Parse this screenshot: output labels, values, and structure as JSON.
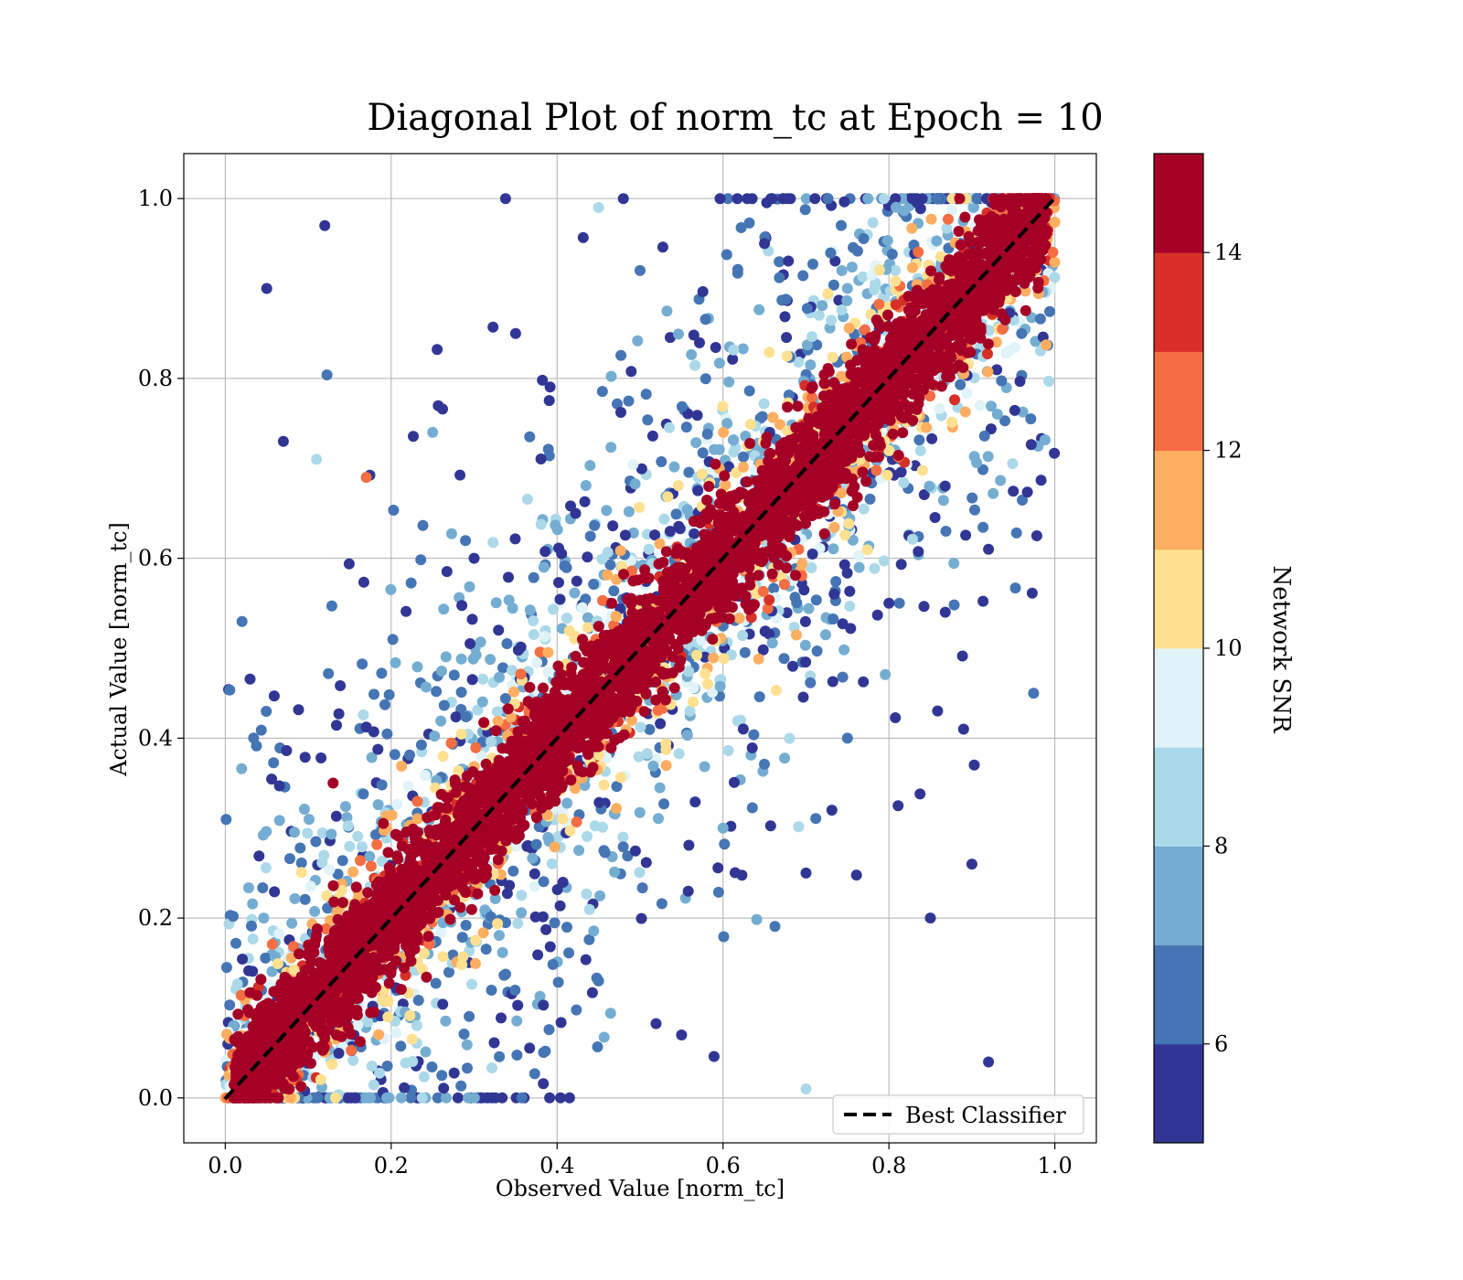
{
  "chart_data": {
    "type": "scatter",
    "title": "Diagonal Plot of norm_tc at Epoch = 10",
    "xlabel": "Observed Value [norm_tc]",
    "ylabel": "Actual Value [norm_tc]",
    "xlim": [
      -0.05,
      1.05
    ],
    "ylim": [
      -0.05,
      1.05
    ],
    "xticks": [
      "0.0",
      "0.2",
      "0.4",
      "0.6",
      "0.8",
      "1.0"
    ],
    "yticks": [
      "0.0",
      "0.2",
      "0.4",
      "0.6",
      "0.8",
      "1.0"
    ],
    "grid": true,
    "reference_line": {
      "label": "Best Classifier",
      "style": "dashed",
      "color": "#000000",
      "x": [
        0.0,
        1.0
      ],
      "y": [
        0.0,
        1.0
      ]
    },
    "legend": {
      "placement": "lower-right",
      "entries": [
        "Best Classifier"
      ]
    },
    "colorbar": {
      "label": "Network SNR",
      "range": [
        5,
        15
      ],
      "ticks": [
        "6",
        "8",
        "10",
        "12",
        "14"
      ],
      "tick_values": [
        6,
        8,
        10,
        12,
        14
      ],
      "colors": [
        "#313695",
        "#4575b4",
        "#74add1",
        "#abd9e9",
        "#e0f3f8",
        "#fee090",
        "#fdae61",
        "#f46d43",
        "#d73027",
        "#a50026"
      ]
    },
    "distribution_description": {
      "points_clipped_to": [
        0,
        1
      ],
      "high_snr_band_halfwidth": 0.05,
      "low_snr_spread": 0.6
    },
    "points": [
      {
        "x": 0.1,
        "y": 0.1,
        "snr": 15
      },
      {
        "x": 0.3,
        "y": 0.29,
        "snr": 15
      },
      {
        "x": 0.5,
        "y": 0.51,
        "snr": 15
      },
      {
        "x": 0.7,
        "y": 0.7,
        "snr": 15
      },
      {
        "x": 0.9,
        "y": 0.91,
        "snr": 15
      },
      {
        "x": 0.05,
        "y": 0.9,
        "snr": 5
      },
      {
        "x": 0.07,
        "y": 0.73,
        "snr": 5
      },
      {
        "x": 0.11,
        "y": 0.71,
        "snr": 8
      },
      {
        "x": 0.17,
        "y": 0.69,
        "snr": 12
      },
      {
        "x": 0.12,
        "y": 0.97,
        "snr": 5
      },
      {
        "x": 0.13,
        "y": 0.35,
        "snr": 14
      },
      {
        "x": 0.92,
        "y": 0.61,
        "snr": 5
      },
      {
        "x": 0.96,
        "y": 0.85,
        "snr": 6
      },
      {
        "x": 0.91,
        "y": 0.77,
        "snr": 9
      },
      {
        "x": 0.89,
        "y": 0.41,
        "snr": 5
      },
      {
        "x": 0.9,
        "y": 0.26,
        "snr": 5
      },
      {
        "x": 0.92,
        "y": 0.04,
        "snr": 5
      },
      {
        "x": 0.7,
        "y": 0.01,
        "snr": 8
      },
      {
        "x": 0.55,
        "y": 0.07,
        "snr": 5
      },
      {
        "x": 0.45,
        "y": 0.13,
        "snr": 6
      },
      {
        "x": 0.3,
        "y": 0.6,
        "snr": 5
      },
      {
        "x": 0.25,
        "y": 0.74,
        "snr": 7
      },
      {
        "x": 0.35,
        "y": 0.85,
        "snr": 5
      },
      {
        "x": 0.5,
        "y": 0.92,
        "snr": 6
      },
      {
        "x": 0.45,
        "y": 0.99,
        "snr": 8
      },
      {
        "x": 0.65,
        "y": 0.95,
        "snr": 5
      },
      {
        "x": 0.75,
        "y": 0.9,
        "snr": 7
      },
      {
        "x": 0.8,
        "y": 0.55,
        "snr": 5
      },
      {
        "x": 0.75,
        "y": 0.4,
        "snr": 6
      },
      {
        "x": 0.7,
        "y": 0.25,
        "snr": 5
      },
      {
        "x": 0.6,
        "y": 0.3,
        "snr": 7
      },
      {
        "x": 0.85,
        "y": 0.2,
        "snr": 5
      }
    ]
  }
}
